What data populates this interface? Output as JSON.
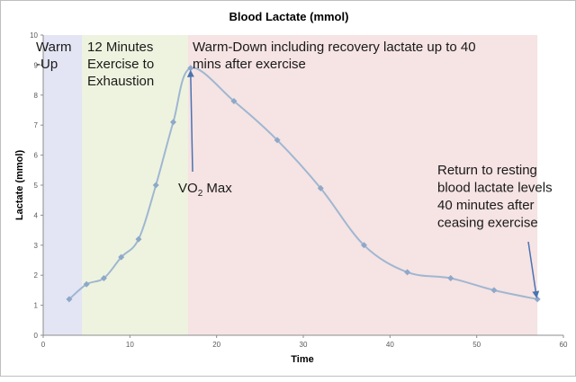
{
  "chart_data": {
    "type": "line",
    "title": "Blood Lactate (mmol)",
    "xlabel": "Time",
    "ylabel": "Lactate (mmol)",
    "xlim": [
      0,
      60
    ],
    "ylim": [
      0,
      10
    ],
    "x_ticks": [
      0,
      10,
      20,
      30,
      40,
      50,
      60
    ],
    "y_ticks": [
      0,
      1,
      2,
      3,
      4,
      5,
      6,
      7,
      8,
      9,
      10
    ],
    "grid": false,
    "legend": "none",
    "series": [
      {
        "x": [
          3,
          5,
          7,
          9,
          11,
          13,
          15,
          17,
          22,
          27,
          32,
          37,
          42,
          47,
          52,
          57
        ],
        "y": [
          1.2,
          1.7,
          1.9,
          2.6,
          3.2,
          5.0,
          7.1,
          8.9,
          7.8,
          6.5,
          4.9,
          3.0,
          2.1,
          1.9,
          1.5,
          1.2
        ],
        "color": "#9fb7d1",
        "marker_color": "#8ea8c9"
      }
    ],
    "phases": [
      {
        "x_start": 0,
        "x_end": 4.5,
        "color": "#e3e5f4",
        "label_lines": [
          "Warm",
          "-Up"
        ]
      },
      {
        "x_start": 4.5,
        "x_end": 16.7,
        "color": "#eef3df",
        "label_lines": [
          "12 Minutes",
          "Exercise to",
          "Exhaustion"
        ]
      },
      {
        "x_start": 16.7,
        "x_end": 57,
        "color": "#f6e3e3",
        "label_lines": [
          "Warm-Down including recovery lactate up to 40",
          "mins after exercise"
        ]
      }
    ],
    "annotations": [
      {
        "name": "vo2-max-annotation",
        "text": "VO",
        "sub": "2",
        "text_after": " Max",
        "arrow_to": [
          17,
          8.9
        ]
      },
      {
        "name": "resting-annotation",
        "lines": [
          "Return to resting",
          "blood lactate levels",
          "40 minutes after",
          "ceasing exercise"
        ],
        "arrow_to": [
          57,
          1.2
        ]
      }
    ],
    "arrow_color": "#4a74b0"
  }
}
